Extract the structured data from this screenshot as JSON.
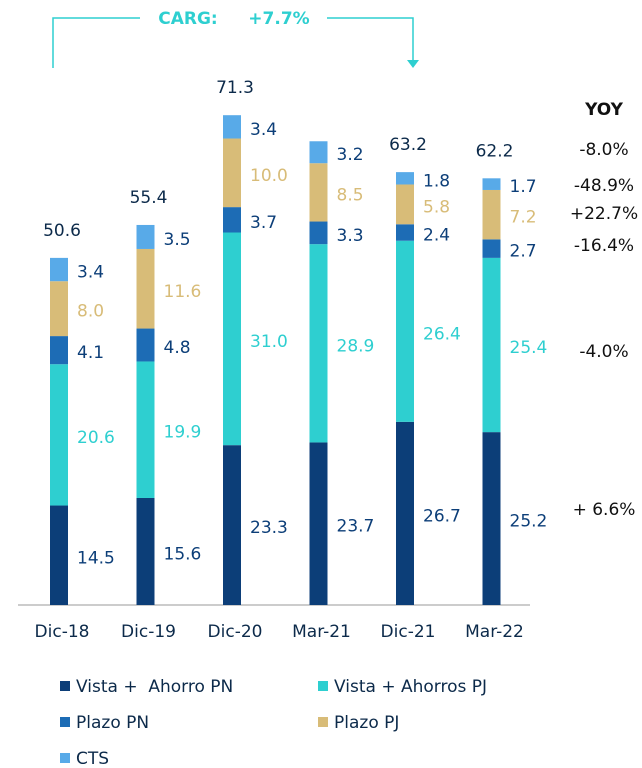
{
  "chart_data": {
    "type": "stacked_bar",
    "annotation": {
      "label": "CARG:",
      "value": "+7.7%"
    },
    "categories": [
      "Dic-18",
      "Dic-19",
      "Dic-20",
      "Mar-21",
      "Dic-21",
      "Mar-22"
    ],
    "series": [
      {
        "name": "Vista +  Ahorro PN",
        "color": "#0c3e78",
        "label_color": "#0c3e78",
        "values": [
          14.5,
          15.6,
          23.3,
          23.7,
          26.7,
          25.2
        ],
        "value_labels": [
          "14.5",
          "15.6",
          "23.3",
          "23.7",
          "26.7",
          "25.2"
        ]
      },
      {
        "name": "Vista + Ahorros PJ",
        "color": "#2ecfd0",
        "label_color": "#2ecfd0",
        "values": [
          20.6,
          19.9,
          31.0,
          28.9,
          26.4,
          25.4
        ],
        "value_labels": [
          "20.6",
          "19.9",
          "31.0",
          "28.9",
          "26.4",
          "25.4"
        ]
      },
      {
        "name": "Plazo PN",
        "color": "#1d6cb5",
        "label_color": "#0c3e78",
        "values": [
          4.1,
          4.8,
          3.7,
          3.3,
          2.4,
          2.7
        ],
        "value_labels": [
          "4.1",
          "4.8",
          "3.7",
          "3.3",
          "2.4",
          "2.7"
        ]
      },
      {
        "name": "Plazo PJ",
        "color": "#d8bc78",
        "label_color": "#d8bc78",
        "values": [
          8.0,
          11.6,
          10.0,
          8.5,
          5.8,
          7.2
        ],
        "value_labels": [
          "8.0",
          "11.6",
          "10.0",
          "8.5",
          "5.8",
          "7.2"
        ]
      },
      {
        "name": "CTS",
        "color": "#58aae8",
        "label_color": "#0c3e78",
        "values": [
          3.4,
          3.5,
          3.4,
          3.2,
          1.8,
          1.7
        ],
        "value_labels": [
          "3.4",
          "3.5",
          "3.4",
          "3.2",
          "1.8",
          "1.7"
        ]
      }
    ],
    "totals": [
      50.6,
      55.4,
      71.3,
      null,
      63.2,
      62.2
    ],
    "yoy": {
      "title": "YOY",
      "labels": [
        "-8.0%",
        "-48.9%",
        "+22.7%",
        "-16.4%",
        "-4.0%",
        "+ 6.6%"
      ]
    }
  }
}
